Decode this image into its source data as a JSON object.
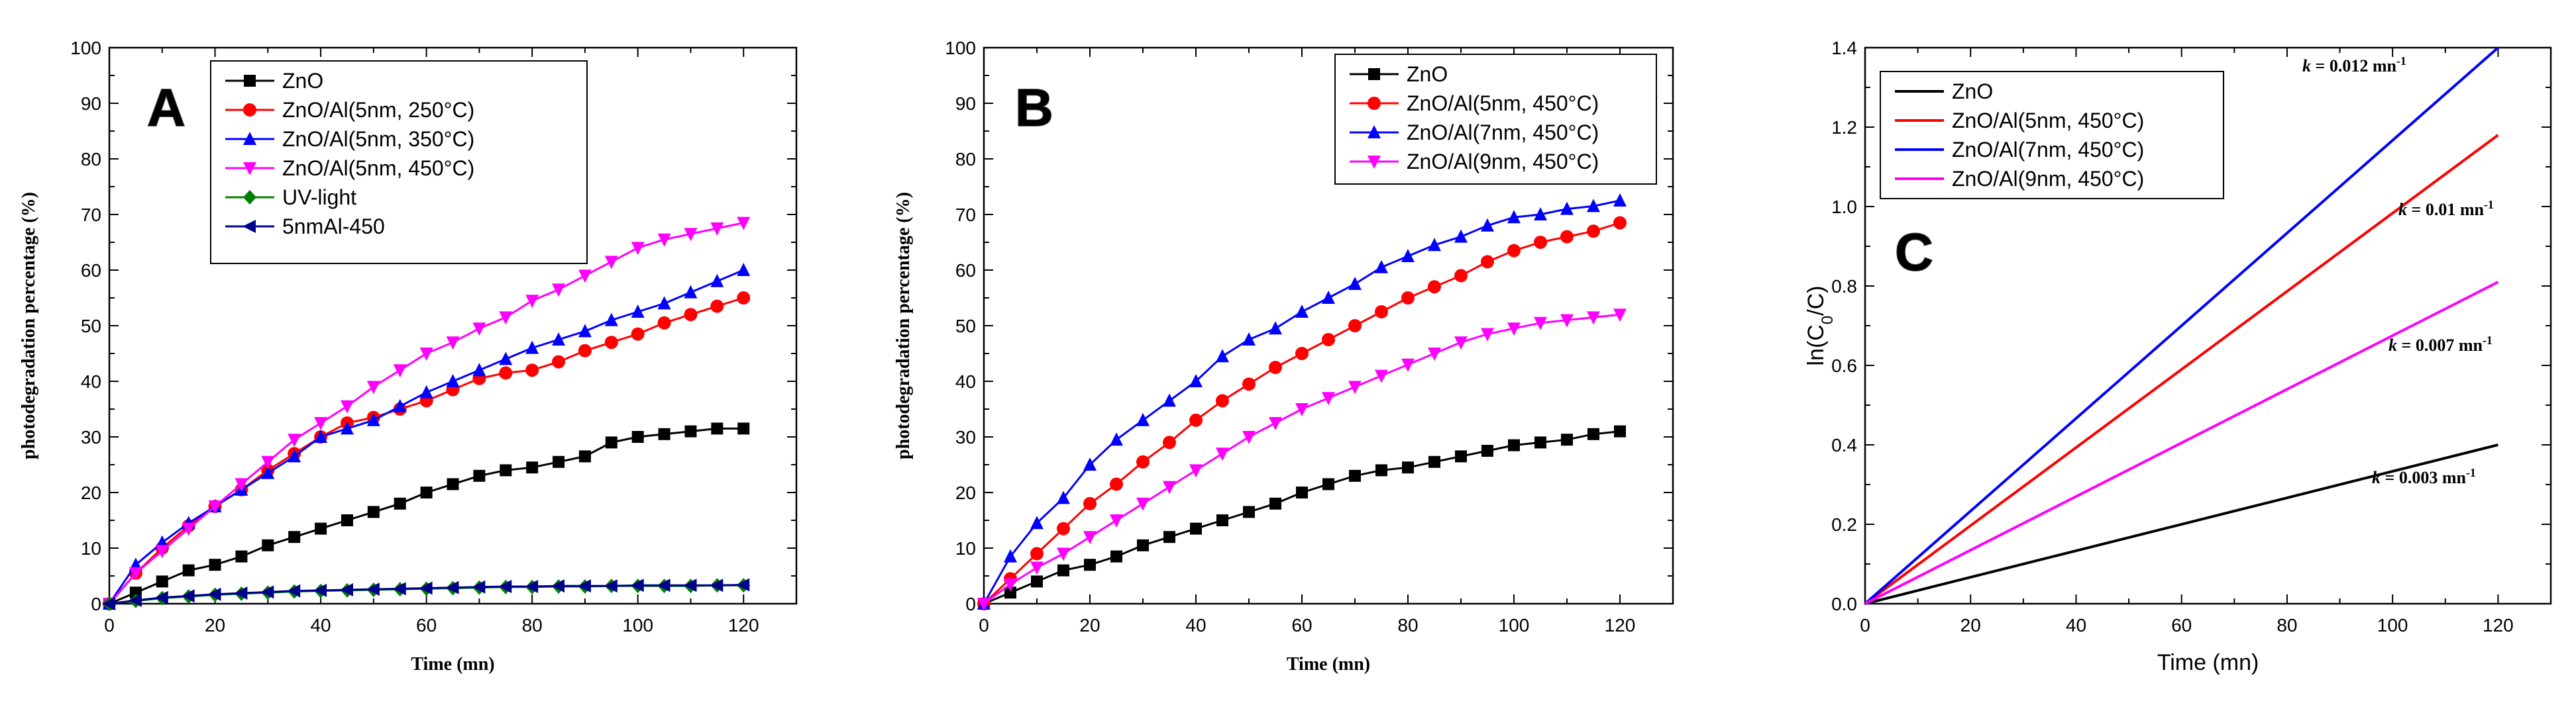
{
  "chart_data": [
    {
      "type": "line",
      "panel_label": "A",
      "xlabel": "Time (mn)",
      "ylabel": "photodegradation percentage (%)",
      "xlim": [
        0,
        130
      ],
      "ylim": [
        0,
        100
      ],
      "xticks": [
        "0",
        "20",
        "40",
        "60",
        "80",
        "100",
        "120"
      ],
      "yticks": [
        "0",
        "10",
        "20",
        "30",
        "40",
        "50",
        "60",
        "70",
        "80",
        "90",
        "100"
      ],
      "x": [
        0,
        5,
        10,
        15,
        20,
        25,
        30,
        35,
        40,
        45,
        50,
        55,
        60,
        65,
        70,
        75,
        80,
        85,
        90,
        95,
        100,
        105,
        110,
        115,
        120
      ],
      "series": [
        {
          "name": "ZnO",
          "color": "#000000",
          "marker": "square",
          "values": [
            0,
            2,
            4,
            6,
            7,
            8.5,
            10.5,
            12,
            13.5,
            15,
            16.5,
            18,
            20,
            21.5,
            23,
            24,
            24.5,
            25.5,
            26.5,
            29,
            30,
            30.5,
            31,
            31.5,
            31.5
          ]
        },
        {
          "name": "ZnO/Al(5nm, 250°C)",
          "color": "#ff0000",
          "marker": "circle",
          "values": [
            0,
            5.5,
            10,
            14,
            17.5,
            20.5,
            24,
            27,
            30,
            32.5,
            33.5,
            35,
            36.5,
            38.5,
            40.5,
            41.5,
            42,
            43.5,
            45.5,
            47,
            48.5,
            50.5,
            52,
            53.5,
            55
          ]
        },
        {
          "name": "ZnO/Al(5nm, 350°C)",
          "color": "#0000ff",
          "marker": "triangle-up",
          "values": [
            0,
            7,
            11,
            14.5,
            17.5,
            20.5,
            23.5,
            26.5,
            30,
            31.5,
            33,
            35.5,
            38,
            40,
            42,
            44,
            46,
            47.5,
            49,
            51,
            52.5,
            54,
            56,
            58,
            60
          ]
        },
        {
          "name": "ZnO/Al(5nm, 450°C)",
          "color": "#ff00ff",
          "marker": "triangle-down",
          "values": [
            0,
            5.5,
            9.5,
            13.5,
            17.5,
            21.5,
            25.5,
            29.5,
            32.5,
            35.5,
            39,
            42,
            45,
            47,
            49.5,
            51.5,
            54.5,
            56.5,
            59,
            61.5,
            64,
            65.5,
            66.5,
            67.5,
            68.5
          ]
        },
        {
          "name": "UV-light",
          "color": "#008000",
          "marker": "diamond",
          "values": [
            0,
            0.5,
            1,
            1.3,
            1.6,
            1.8,
            2,
            2.2,
            2.3,
            2.4,
            2.5,
            2.6,
            2.7,
            2.8,
            2.9,
            3,
            3,
            3.1,
            3.1,
            3.2,
            3.2,
            3.2,
            3.2,
            3.3,
            3.3
          ]
        },
        {
          "name": "5nmAl-450",
          "color": "#00008b",
          "marker": "triangle-left",
          "values": [
            0,
            0.6,
            1.1,
            1.4,
            1.7,
            1.9,
            2.1,
            2.3,
            2.4,
            2.5,
            2.6,
            2.7,
            2.8,
            2.9,
            3,
            3.1,
            3.1,
            3.2,
            3.2,
            3.2,
            3.3,
            3.3,
            3.3,
            3.3,
            3.4
          ]
        }
      ]
    },
    {
      "type": "line",
      "panel_label": "B",
      "xlabel": "Time (mn)",
      "ylabel": "photodegradation percentage (%)",
      "xlim": [
        0,
        130
      ],
      "ylim": [
        0,
        100
      ],
      "xticks": [
        "0",
        "20",
        "40",
        "60",
        "80",
        "100",
        "120"
      ],
      "yticks": [
        "0",
        "10",
        "20",
        "30",
        "40",
        "50",
        "60",
        "70",
        "80",
        "90",
        "100"
      ],
      "x": [
        0,
        5,
        10,
        15,
        20,
        25,
        30,
        35,
        40,
        45,
        50,
        55,
        60,
        65,
        70,
        75,
        80,
        85,
        90,
        95,
        100,
        105,
        110,
        115,
        120
      ],
      "series": [
        {
          "name": "ZnO",
          "color": "#000000",
          "marker": "square",
          "values": [
            0,
            2,
            4,
            6,
            7,
            8.5,
            10.5,
            12,
            13.5,
            15,
            16.5,
            18,
            20,
            21.5,
            23,
            24,
            24.5,
            25.5,
            26.5,
            27.5,
            28.5,
            29,
            29.5,
            30.5,
            31
          ]
        },
        {
          "name": "ZnO/Al(5nm, 450°C)",
          "color": "#ff0000",
          "marker": "circle",
          "values": [
            0,
            4.5,
            9,
            13.5,
            18,
            21.5,
            25.5,
            29,
            33,
            36.5,
            39.5,
            42.5,
            45,
            47.5,
            50,
            52.5,
            55,
            57,
            59,
            61.5,
            63.5,
            65,
            66,
            67,
            68.5
          ]
        },
        {
          "name": "ZnO/Al(7nm, 450°C)",
          "color": "#0000ff",
          "marker": "triangle-up",
          "values": [
            0,
            8.5,
            14.5,
            19,
            25,
            29.5,
            33,
            36.5,
            40,
            44.5,
            47.5,
            49.5,
            52.5,
            55,
            57.5,
            60.5,
            62.5,
            64.5,
            66,
            68,
            69.5,
            70,
            71,
            71.5,
            72.5
          ]
        },
        {
          "name": "ZnO/Al(9nm, 450°C)",
          "color": "#ff00ff",
          "marker": "triangle-down",
          "values": [
            0,
            3.5,
            6.5,
            9,
            12,
            15,
            18,
            21,
            24,
            27,
            30,
            32.5,
            35,
            37,
            39,
            41,
            43,
            45,
            47,
            48.5,
            49.5,
            50.5,
            51,
            51.5,
            52
          ]
        }
      ]
    },
    {
      "type": "line",
      "panel_label": "C",
      "xlabel": "Time (mn)",
      "ylabel_main": "ln(C",
      "ylabel_sub": "0",
      "ylabel_tail": "/C)",
      "xlim": [
        0,
        130
      ],
      "ylim": [
        0,
        1.4
      ],
      "xticks": [
        "0",
        "20",
        "40",
        "60",
        "80",
        "100",
        "120"
      ],
      "yticks": [
        "0.0",
        "0.2",
        "0.4",
        "0.6",
        "0.8",
        "1.0",
        "1.2",
        "1.4"
      ],
      "series": [
        {
          "name": "ZnO",
          "color": "#000000",
          "x": [
            0,
            120
          ],
          "values": [
            0,
            0.4
          ],
          "k_label": "k = 0.003 mn",
          "k_exp": "-1"
        },
        {
          "name": "ZnO/Al(5nm, 450°C)",
          "color": "#ff0000",
          "x": [
            0,
            120
          ],
          "values": [
            0,
            1.18
          ],
          "k_label": "k = 0.01 mn",
          "k_exp": "-1"
        },
        {
          "name": "ZnO/Al(7nm, 450°C)",
          "color": "#0000ff",
          "x": [
            0,
            120
          ],
          "values": [
            0,
            1.4
          ],
          "k_label": "k = 0.012 mn",
          "k_exp": "-1"
        },
        {
          "name": "ZnO/Al(9nm, 450°C)",
          "color": "#ff00ff",
          "x": [
            0,
            120
          ],
          "values": [
            0,
            0.81
          ],
          "k_label": "k = 0.007 mn",
          "k_exp": "-1"
        }
      ]
    }
  ]
}
